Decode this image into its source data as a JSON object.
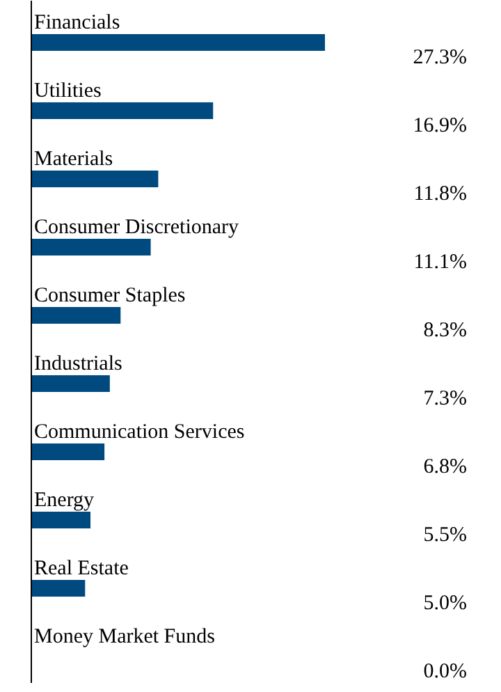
{
  "chart_data": {
    "type": "bar",
    "orientation": "horizontal",
    "categories": [
      "Financials",
      "Utilities",
      "Materials",
      "Consumer Discretionary",
      "Consumer Staples",
      "Industrials",
      "Communication Services",
      "Energy",
      "Real Estate",
      "Money Market Funds"
    ],
    "values": [
      27.3,
      16.9,
      11.8,
      11.1,
      8.3,
      7.3,
      6.8,
      5.5,
      5.0,
      0.0
    ],
    "value_labels": [
      "27.3%",
      "16.9%",
      "11.8%",
      "11.1%",
      "8.3%",
      "7.3%",
      "6.8%",
      "5.5%",
      "5.0%",
      "0.0%"
    ],
    "color": "#004a80",
    "grid": false
  }
}
